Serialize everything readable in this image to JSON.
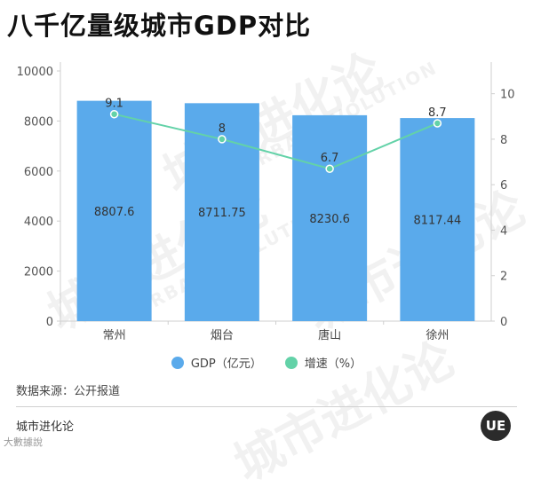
{
  "title": "八千亿量级城市GDP对比",
  "watermark_texts": [
    "城市进化论",
    "URBAN EVOLUTION"
  ],
  "chart_data": {
    "type": "bar",
    "categories": [
      "常州",
      "烟台",
      "唐山",
      "徐州"
    ],
    "series": [
      {
        "name": "GDP（亿元）",
        "type": "bar",
        "axis": "left",
        "values": [
          8807.6,
          8711.75,
          8230.6,
          8117.44
        ],
        "labels": [
          "8807.6",
          "8711.75",
          "8230.6",
          "8117.44"
        ],
        "color": "#5aaaeb"
      },
      {
        "name": "增速（%）",
        "type": "line",
        "axis": "right",
        "values": [
          9.1,
          8,
          6.7,
          8.7
        ],
        "labels": [
          "9.1",
          "8",
          "6.7",
          "8.7"
        ],
        "color": "#63d2a8"
      }
    ],
    "y_left": {
      "min": 0,
      "max": 10000,
      "ticks": [
        0,
        2000,
        4000,
        6000,
        8000,
        10000
      ]
    },
    "y_right": {
      "min": 0,
      "max": 11,
      "ticks": [
        0,
        2,
        4,
        6,
        8,
        10
      ]
    },
    "grid": false,
    "legend": "bottom"
  },
  "source_text": "数据来源：公开报道",
  "footer": {
    "brand": "城市进化论",
    "credit": "大數據說",
    "logo_text": "UE"
  }
}
